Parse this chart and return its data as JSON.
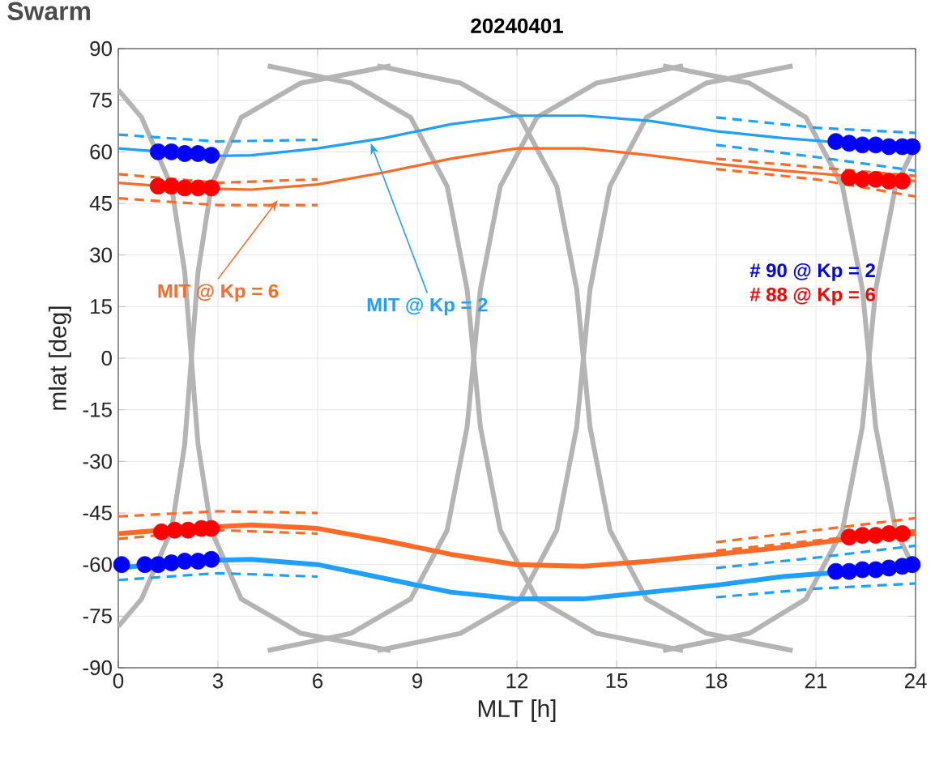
{
  "chart_data": {
    "type": "line",
    "title": "Swarm",
    "subtitle": "20240401",
    "xlabel": "MLT [h]",
    "ylabel": "mlat [deg]",
    "xlim": [
      0,
      24
    ],
    "ylim": [
      -90,
      90
    ],
    "xticks": [
      0,
      3,
      6,
      9,
      12,
      15,
      18,
      21,
      24
    ],
    "yticks": [
      -90,
      -75,
      -60,
      -45,
      -30,
      -15,
      0,
      15,
      30,
      45,
      60,
      75,
      90
    ],
    "grid": true,
    "legend": false,
    "series": [
      {
        "color": "#b4b4b4",
        "x": [
          0,
          0.7,
          1.6,
          2.0,
          2.2,
          2.4,
          2.8,
          3.7,
          5.5,
          8.2
        ],
        "values": [
          78,
          70,
          50,
          25,
          0,
          -25,
          -50,
          -70,
          -80,
          -85
        ]
      },
      {
        "color": "#b4b4b4",
        "x": [
          8.2,
          5.5,
          3.7,
          2.8,
          2.4,
          2.2,
          2.0,
          1.6,
          0.7,
          0
        ],
        "values": [
          85,
          80,
          70,
          50,
          25,
          0,
          -25,
          -50,
          -70,
          -78
        ]
      },
      {
        "color": "#b4b4b4",
        "x": [
          4.5,
          7,
          8.8,
          9.9,
          10.5,
          10.7,
          10.9,
          11.5,
          12.6,
          14.4,
          17
        ],
        "values": [
          85,
          80,
          70,
          50,
          20,
          0,
          -20,
          -50,
          -70,
          -80,
          -85
        ]
      },
      {
        "color": "#b4b4b4",
        "x": [
          17,
          14.4,
          12.6,
          11.5,
          10.9,
          10.7,
          10.5,
          9.9,
          8.8,
          7,
          4.5
        ],
        "values": [
          85,
          80,
          70,
          50,
          20,
          0,
          -20,
          -50,
          -70,
          -80,
          -85
        ]
      },
      {
        "color": "#b4b4b4",
        "x": [
          7.8,
          10.3,
          12.1,
          13.2,
          13.8,
          14.0,
          14.2,
          14.8,
          15.9,
          17.7,
          20.3
        ],
        "values": [
          85,
          80,
          70,
          50,
          20,
          0,
          -20,
          -50,
          -70,
          -80,
          -85
        ]
      },
      {
        "color": "#b4b4b4",
        "x": [
          20.3,
          17.7,
          15.9,
          14.8,
          14.2,
          14.0,
          13.8,
          13.2,
          12.1,
          10.3,
          7.8
        ],
        "values": [
          85,
          80,
          70,
          50,
          20,
          0,
          -20,
          -50,
          -70,
          -80,
          -85
        ]
      },
      {
        "color": "#b4b4b4",
        "x": [
          16.4,
          19,
          20.7,
          21.8,
          22.4,
          22.6,
          22.8,
          23.4,
          24
        ],
        "values": [
          85,
          80,
          70,
          50,
          20,
          0,
          -20,
          -50,
          -62
        ]
      },
      {
        "color": "#b4b4b4",
        "x": [
          24,
          23.4,
          22.8,
          22.6,
          22.4,
          21.8,
          20.7,
          19,
          16.4
        ],
        "values": [
          62,
          50,
          20,
          0,
          -20,
          -50,
          -70,
          -80,
          -85
        ]
      },
      {
        "name": "MIT @ Kp = 2",
        "color": "#1fa0ff",
        "x": [
          0,
          2,
          3,
          4,
          6,
          8,
          10,
          12,
          14,
          16,
          18,
          20,
          22,
          24
        ],
        "values": [
          61,
          59.5,
          58.8,
          59,
          61,
          64,
          68,
          70.5,
          70.5,
          69,
          66,
          64,
          62.5,
          60.8
        ]
      },
      {
        "color": "#1fa0ff",
        "x": [
          0,
          2,
          4,
          6,
          8,
          10,
          12,
          14,
          16,
          18,
          20,
          22,
          24
        ],
        "values": [
          -61,
          -59,
          -58.5,
          -60,
          -64,
          -68,
          -70,
          -70,
          -68,
          -66,
          -63.5,
          -62,
          -60.5
        ]
      },
      {
        "name": "MIT @ Kp = 6",
        "color": "#ff6a26",
        "x": [
          0,
          2,
          4,
          6,
          8,
          10,
          12,
          14,
          16,
          18,
          20,
          22,
          24
        ],
        "values": [
          51,
          49.5,
          49,
          50.5,
          54,
          58,
          61,
          61,
          59,
          56.5,
          54.5,
          53,
          51.5
        ]
      },
      {
        "color": "#ff6a26",
        "x": [
          0,
          2,
          4,
          6,
          8,
          10,
          12,
          14,
          16,
          18,
          20,
          22,
          24
        ],
        "values": [
          -51,
          -49.5,
          -48.5,
          -49.5,
          -53,
          -57,
          -60,
          -60.5,
          -59,
          -57,
          -55,
          -52.5,
          -51
        ]
      },
      {
        "color": "#1fa0ff",
        "line_style": "dashed",
        "x": [
          0,
          3,
          6
        ],
        "values": [
          65,
          63,
          63.5
        ]
      },
      {
        "color": "#1fa0ff",
        "line_style": "dashed",
        "x": [
          18,
          21,
          24
        ],
        "values": [
          70,
          67,
          65.5
        ]
      },
      {
        "color": "#1fa0ff",
        "line_style": "dashed",
        "x": [
          18,
          21,
          24
        ],
        "values": [
          62,
          58.5,
          54.5
        ]
      },
      {
        "color": "#1fa0ff",
        "line_style": "dashed",
        "x": [
          0,
          3,
          6
        ],
        "values": [
          -64.5,
          -62.5,
          -63.5
        ]
      },
      {
        "color": "#1fa0ff",
        "line_style": "dashed",
        "x": [
          18,
          21,
          24
        ],
        "values": [
          -61,
          -58,
          -54.5
        ]
      },
      {
        "color": "#1fa0ff",
        "line_style": "dashed",
        "x": [
          18,
          21,
          24
        ],
        "values": [
          -69.5,
          -67,
          -65.5
        ]
      },
      {
        "color": "#ff6a26",
        "line_style": "dashed",
        "x": [
          0,
          3,
          6
        ],
        "values": [
          53.5,
          51,
          52
        ]
      },
      {
        "color": "#ff6a26",
        "line_style": "dashed",
        "x": [
          0,
          3,
          6
        ],
        "values": [
          46.5,
          44.5,
          44.5
        ]
      },
      {
        "color": "#ff6a26",
        "line_style": "dashed",
        "x": [
          18,
          21,
          24
        ],
        "values": [
          58,
          55.5,
          53
        ]
      },
      {
        "color": "#ff6a26",
        "line_style": "dashed",
        "x": [
          18,
          21,
          24
        ],
        "values": [
          55,
          52,
          47
        ]
      },
      {
        "color": "#ff6a26",
        "line_style": "dashed",
        "x": [
          0,
          3,
          6
        ],
        "values": [
          -46,
          -44.5,
          -45
        ]
      },
      {
        "color": "#ff6a26",
        "line_style": "dashed",
        "x": [
          0,
          3,
          6
        ],
        "values": [
          -52.5,
          -50,
          -51
        ]
      },
      {
        "color": "#ff6a26",
        "line_style": "dashed",
        "x": [
          18,
          21,
          24
        ],
        "values": [
          -53.5,
          -50,
          -46.5
        ]
      },
      {
        "color": "#ff6a26",
        "line_style": "dashed",
        "x": [
          18,
          21,
          24
        ],
        "values": [
          -56,
          -53,
          -50
        ]
      },
      {
        "name": "# 90 @ Kp = 2",
        "type": "scatter",
        "color": "#0000ff",
        "x": [
          1.2,
          1.6,
          2,
          2.4,
          2.8,
          21.6,
          22,
          22.4,
          22.8,
          23.2,
          23.6,
          23.9,
          0.1,
          0.8,
          1.2,
          1.6,
          2,
          2.4,
          2.8,
          21.6,
          22,
          22.4,
          22.8,
          23.2,
          23.6,
          23.9
        ],
        "values": [
          60,
          60,
          59.5,
          59.5,
          59,
          63,
          62.5,
          62,
          62,
          61.5,
          61.5,
          61.5,
          -60,
          -60,
          -60,
          -59.5,
          -59,
          -59,
          -58.5,
          -62,
          -62,
          -61.5,
          -61.5,
          -61,
          -60.5,
          -60
        ]
      },
      {
        "name": "# 88 @ Kp = 6",
        "type": "scatter",
        "color": "#ff0000",
        "x": [
          1.2,
          1.6,
          2,
          2.4,
          2.8,
          22,
          22.4,
          22.8,
          23.2,
          23.6,
          1.3,
          1.7,
          2.1,
          2.5,
          2.8,
          22,
          22.4,
          22.8,
          23.2,
          23.6
        ],
        "values": [
          50,
          50,
          49.5,
          49.5,
          49.5,
          52.5,
          52,
          52,
          51.5,
          51.5,
          -50.5,
          -50,
          -50,
          -49.5,
          -49.5,
          -52,
          -51.5,
          -51.5,
          -51,
          -51
        ]
      }
    ]
  }
}
